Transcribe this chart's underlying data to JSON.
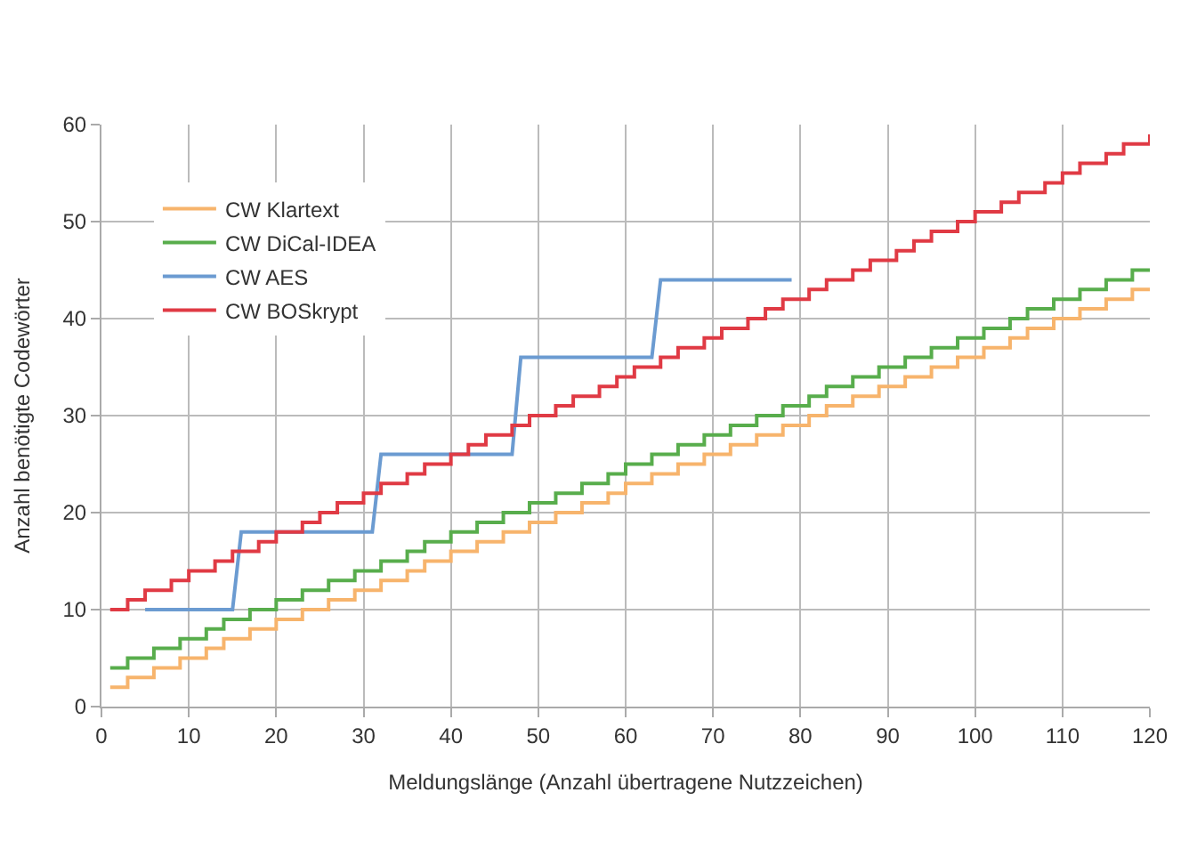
{
  "chart_data": {
    "type": "step",
    "xlabel": "Meldungslänge (Anzahl übertragene Nutzzeichen)",
    "ylabel": "Anzahl benötigte Codewörter",
    "xlim": [
      0,
      120
    ],
    "ylim": [
      0,
      60
    ],
    "xticks": [
      0,
      10,
      20,
      30,
      40,
      50,
      60,
      70,
      80,
      90,
      100,
      110,
      120
    ],
    "yticks": [
      0,
      10,
      20,
      30,
      40,
      50,
      60
    ],
    "grid": true,
    "legend": "top left",
    "marker": "none",
    "line_style": "solid",
    "series": [
      {
        "name": "CW Klartext",
        "color": "#f7b46c",
        "x": [
          1,
          3,
          6,
          9,
          12,
          14,
          17,
          20,
          23,
          26,
          29,
          32,
          35,
          37,
          40,
          43,
          46,
          49,
          52,
          55,
          58,
          60,
          63,
          66,
          69,
          72,
          75,
          78,
          81,
          83,
          86,
          89,
          92,
          95,
          98,
          101,
          104,
          106,
          109,
          112,
          115,
          118,
          120
        ],
        "values": [
          2,
          3,
          4,
          5,
          6,
          7,
          8,
          9,
          10,
          11,
          12,
          13,
          14,
          15,
          16,
          17,
          18,
          19,
          20,
          21,
          22,
          23,
          24,
          25,
          26,
          27,
          28,
          29,
          30,
          31,
          32,
          33,
          34,
          35,
          36,
          37,
          38,
          39,
          40,
          41,
          42,
          43,
          43
        ]
      },
      {
        "name": "CW DiCal-IDEA",
        "color": "#58ad4c",
        "x": [
          1,
          3,
          6,
          9,
          12,
          14,
          17,
          20,
          23,
          26,
          29,
          32,
          35,
          37,
          40,
          43,
          46,
          49,
          52,
          55,
          58,
          60,
          63,
          66,
          69,
          72,
          75,
          78,
          81,
          83,
          86,
          89,
          92,
          95,
          98,
          101,
          104,
          106,
          109,
          112,
          115,
          118,
          120
        ],
        "values": [
          4,
          5,
          6,
          7,
          8,
          9,
          10,
          11,
          12,
          13,
          14,
          15,
          16,
          17,
          18,
          19,
          20,
          21,
          22,
          23,
          24,
          25,
          26,
          27,
          28,
          29,
          30,
          31,
          32,
          33,
          34,
          35,
          36,
          37,
          38,
          39,
          40,
          41,
          42,
          43,
          44,
          45,
          45
        ]
      },
      {
        "name": "CW AES",
        "color": "#6b9bd1",
        "type": "line",
        "x": [
          5,
          15,
          16,
          31,
          32,
          47,
          48,
          63,
          64,
          79
        ],
        "values": [
          10,
          10,
          18,
          18,
          26,
          26,
          36,
          36,
          44,
          44
        ]
      },
      {
        "name": "CW BOSkrypt",
        "color": "#e03a44",
        "x": [
          1,
          3,
          5,
          8,
          10,
          13,
          15,
          18,
          20,
          23,
          25,
          27,
          30,
          32,
          35,
          37,
          40,
          42,
          44,
          47,
          49,
          52,
          54,
          57,
          59,
          61,
          64,
          66,
          69,
          71,
          74,
          76,
          78,
          81,
          83,
          86,
          88,
          91,
          93,
          95,
          98,
          100,
          103,
          105,
          108,
          110,
          112,
          115,
          117,
          120
        ],
        "values": [
          10,
          11,
          12,
          13,
          14,
          15,
          16,
          17,
          18,
          19,
          20,
          21,
          22,
          23,
          24,
          25,
          26,
          27,
          28,
          29,
          30,
          31,
          32,
          33,
          34,
          35,
          36,
          37,
          38,
          39,
          40,
          41,
          42,
          43,
          44,
          45,
          46,
          47,
          48,
          49,
          50,
          51,
          52,
          53,
          54,
          55,
          56,
          57,
          58,
          59
        ]
      }
    ]
  }
}
